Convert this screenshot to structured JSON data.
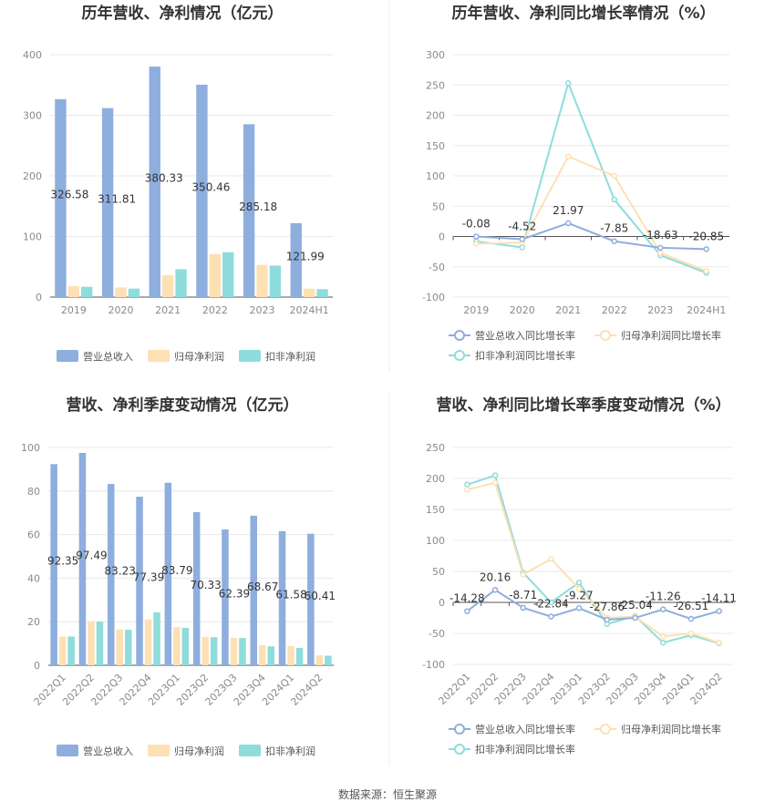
{
  "footer": "数据来源：恒生聚源",
  "colors": {
    "revenue": "#8eaedd",
    "parent_net": "#fde0b4",
    "deducted_net": "#8fdcdc",
    "revenue_line": "#8eaedd",
    "parent_line": "#fde0b4",
    "deducted_line": "#8fdcdc",
    "grid": "#e8e8e8",
    "axis": "#555555"
  },
  "chart_data": [
    {
      "type": "bar",
      "title": "历年营收、净利情况（亿元）",
      "categories": [
        "2019",
        "2020",
        "2021",
        "2022",
        "2023",
        "2024H1"
      ],
      "ylim": [
        0,
        400
      ],
      "yticks": [
        0,
        100,
        200,
        300,
        400
      ],
      "legend_position": "bottom",
      "series": [
        {
          "name": "营业总收入",
          "values": [
            326.58,
            311.81,
            380.33,
            350.46,
            285.18,
            121.99
          ],
          "labels": [
            "326.58",
            "311.81",
            "380.33",
            "350.46",
            "285.18",
            "121.99"
          ]
        },
        {
          "name": "归母净利润",
          "values": [
            18,
            16,
            36,
            71,
            53,
            14
          ]
        },
        {
          "name": "扣非净利润",
          "values": [
            17,
            14,
            46,
            74,
            52,
            13
          ]
        }
      ]
    },
    {
      "type": "line",
      "title": "历年营收、净利同比增长率情况（%）",
      "categories": [
        "2019",
        "2020",
        "2021",
        "2022",
        "2023",
        "2024H1"
      ],
      "ylim": [
        -100,
        300
      ],
      "yticks": [
        -100,
        -50,
        0,
        50,
        100,
        150,
        200,
        250,
        300
      ],
      "legend_position": "bottom",
      "series": [
        {
          "name": "营业总收入同比增长率",
          "values": [
            -0.08,
            -4.52,
            21.97,
            -7.85,
            -18.63,
            -20.85
          ],
          "labels": [
            "-0.08",
            "-4.52",
            "21.97",
            "-7.85",
            "-18.63",
            "-20.85"
          ]
        },
        {
          "name": "归母净利润同比增长率",
          "values": [
            -12,
            -10,
            132,
            100,
            -27,
            -57
          ]
        },
        {
          "name": "扣非净利润同比增长率",
          "values": [
            -8,
            -18,
            253,
            61,
            -31,
            -60
          ]
        }
      ]
    },
    {
      "type": "bar",
      "title": "营收、净利季度变动情况（亿元）",
      "categories": [
        "2022Q1",
        "2022Q2",
        "2022Q3",
        "2022Q4",
        "2023Q1",
        "2023Q2",
        "2023Q3",
        "2023Q4",
        "2024Q1",
        "2024Q2"
      ],
      "ylim": [
        0,
        100
      ],
      "yticks": [
        0,
        20,
        40,
        60,
        80,
        100
      ],
      "legend_position": "bottom",
      "series": [
        {
          "name": "营业总收入",
          "values": [
            92.35,
            97.49,
            83.23,
            77.39,
            83.79,
            70.33,
            62.39,
            68.67,
            61.58,
            60.41
          ],
          "labels": [
            "92.35",
            "97.49",
            "83.23",
            "77.39",
            "83.79",
            "70.33",
            "62.39",
            "68.67",
            "61.58",
            "60.41"
          ]
        },
        {
          "name": "归母净利润",
          "values": [
            13.2,
            20.2,
            16.4,
            21.0,
            17.5,
            13.0,
            12.6,
            9.2,
            8.8,
            4.5
          ]
        },
        {
          "name": "扣非净利润",
          "values": [
            13.2,
            20.0,
            16.3,
            24.3,
            17.2,
            12.9,
            12.5,
            8.7,
            8.0,
            4.4
          ]
        }
      ]
    },
    {
      "type": "line",
      "title": "营收、净利同比增长率季度变动情况（%）",
      "categories": [
        "2022Q1",
        "2022Q2",
        "2022Q3",
        "2022Q4",
        "2023Q1",
        "2023Q2",
        "2023Q3",
        "2023Q4",
        "2024Q1",
        "2024Q2"
      ],
      "ylim": [
        -100,
        250
      ],
      "yticks": [
        -100,
        -50,
        0,
        50,
        100,
        150,
        200,
        250
      ],
      "legend_position": "bottom",
      "series": [
        {
          "name": "营业总收入同比增长率",
          "values": [
            -14.28,
            20.16,
            -8.71,
            -22.84,
            -9.27,
            -27.86,
            -25.04,
            -11.26,
            -26.51,
            -14.11
          ],
          "labels": [
            "-14.28",
            "20.16",
            "-8.71",
            "-22.84",
            "-9.27",
            "-27.86",
            "-25.04",
            "-11.26",
            "-26.51",
            "-14.11"
          ]
        },
        {
          "name": "归母净利润同比增长率",
          "values": [
            182,
            193,
            45,
            70,
            22,
            -25,
            -23,
            -55,
            -50,
            -65
          ]
        },
        {
          "name": "扣非净利润同比增长率",
          "values": [
            190,
            205,
            48,
            0,
            32,
            -35,
            -22,
            -65,
            -53,
            -66
          ]
        }
      ]
    }
  ]
}
